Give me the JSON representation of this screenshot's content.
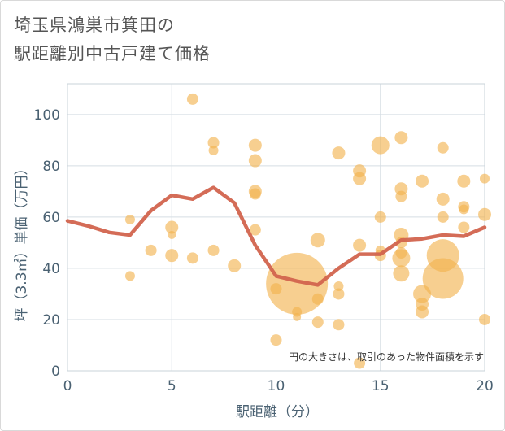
{
  "title_line1": "埼玉県鴻巣市箕田の",
  "title_line2": "駅距離別中古戸建て価格",
  "chart_data": {
    "type": "scatter",
    "xlabel": "駅距離（分）",
    "ylabel": "坪（3.3㎡）単価（万円）",
    "annotation": "円の大きさは、取引のあった物件面積を示す",
    "xlim": [
      0,
      20
    ],
    "ylim": [
      0,
      112
    ],
    "xticks": [
      0,
      5,
      10,
      15,
      20
    ],
    "yticks": [
      0,
      20,
      40,
      60,
      80,
      100
    ],
    "grid": true,
    "colors": {
      "bubble": "#f2b24c",
      "line": "#d2644e",
      "axis_text": "#4a6172"
    },
    "bubbles": [
      {
        "x": 3,
        "y": 59,
        "s": 6
      },
      {
        "x": 3,
        "y": 37,
        "s": 6
      },
      {
        "x": 4,
        "y": 47,
        "s": 7
      },
      {
        "x": 5,
        "y": 56,
        "s": 8
      },
      {
        "x": 5,
        "y": 53,
        "s": 5
      },
      {
        "x": 5,
        "y": 45,
        "s": 8
      },
      {
        "x": 6,
        "y": 106,
        "s": 7
      },
      {
        "x": 6,
        "y": 44,
        "s": 7
      },
      {
        "x": 7,
        "y": 89,
        "s": 7
      },
      {
        "x": 7,
        "y": 86,
        "s": 6
      },
      {
        "x": 7,
        "y": 47,
        "s": 7
      },
      {
        "x": 8,
        "y": 41,
        "s": 8
      },
      {
        "x": 9,
        "y": 88,
        "s": 8
      },
      {
        "x": 9,
        "y": 82,
        "s": 8
      },
      {
        "x": 9,
        "y": 70,
        "s": 8
      },
      {
        "x": 9,
        "y": 69,
        "s": 7
      },
      {
        "x": 9,
        "y": 55,
        "s": 7
      },
      {
        "x": 10,
        "y": 32,
        "s": 7
      },
      {
        "x": 10,
        "y": 12,
        "s": 7
      },
      {
        "x": 11,
        "y": 34,
        "s": 38
      },
      {
        "x": 11,
        "y": 23,
        "s": 6
      },
      {
        "x": 11,
        "y": 21,
        "s": 5
      },
      {
        "x": 12,
        "y": 51,
        "s": 9
      },
      {
        "x": 12,
        "y": 28,
        "s": 7
      },
      {
        "x": 12,
        "y": 19,
        "s": 7
      },
      {
        "x": 13,
        "y": 85,
        "s": 8
      },
      {
        "x": 13,
        "y": 33,
        "s": 6
      },
      {
        "x": 13,
        "y": 30,
        "s": 7
      },
      {
        "x": 13,
        "y": 18,
        "s": 7
      },
      {
        "x": 14,
        "y": 78,
        "s": 8
      },
      {
        "x": 14,
        "y": 75,
        "s": 8
      },
      {
        "x": 14,
        "y": 49,
        "s": 8
      },
      {
        "x": 14,
        "y": 3,
        "s": 7
      },
      {
        "x": 15,
        "y": 88,
        "s": 11
      },
      {
        "x": 15,
        "y": 60,
        "s": 7
      },
      {
        "x": 15,
        "y": 47,
        "s": 6
      },
      {
        "x": 15,
        "y": 45,
        "s": 7
      },
      {
        "x": 16,
        "y": 91,
        "s": 8
      },
      {
        "x": 16,
        "y": 71,
        "s": 8
      },
      {
        "x": 16,
        "y": 68,
        "s": 7
      },
      {
        "x": 16,
        "y": 53,
        "s": 9
      },
      {
        "x": 16,
        "y": 50,
        "s": 7
      },
      {
        "x": 16,
        "y": 46,
        "s": 7
      },
      {
        "x": 16,
        "y": 44,
        "s": 11
      },
      {
        "x": 16,
        "y": 38,
        "s": 10
      },
      {
        "x": 17,
        "y": 74,
        "s": 8
      },
      {
        "x": 17,
        "y": 30,
        "s": 11
      },
      {
        "x": 17,
        "y": 26,
        "s": 8
      },
      {
        "x": 17,
        "y": 23,
        "s": 8
      },
      {
        "x": 18,
        "y": 87,
        "s": 7
      },
      {
        "x": 18,
        "y": 67,
        "s": 8
      },
      {
        "x": 18,
        "y": 60,
        "s": 7
      },
      {
        "x": 18,
        "y": 45,
        "s": 20
      },
      {
        "x": 18,
        "y": 36,
        "s": 25
      },
      {
        "x": 19,
        "y": 74,
        "s": 8
      },
      {
        "x": 19,
        "y": 64,
        "s": 7
      },
      {
        "x": 19,
        "y": 63,
        "s": 6
      },
      {
        "x": 19,
        "y": 56,
        "s": 7
      },
      {
        "x": 20,
        "y": 75,
        "s": 6
      },
      {
        "x": 20,
        "y": 61,
        "s": 8
      },
      {
        "x": 20,
        "y": 20,
        "s": 7
      }
    ],
    "line": {
      "x": [
        0,
        1,
        2,
        3,
        4,
        5,
        6,
        7,
        8,
        9,
        10,
        11,
        12,
        13,
        14,
        15,
        16,
        17,
        18,
        19,
        20
      ],
      "y": [
        58.5,
        56.5,
        54,
        53,
        62.5,
        68.5,
        67,
        71.5,
        65.5,
        49,
        37,
        35,
        33.5,
        40,
        45.5,
        45.5,
        51,
        51.5,
        53,
        52.5,
        56
      ]
    }
  }
}
